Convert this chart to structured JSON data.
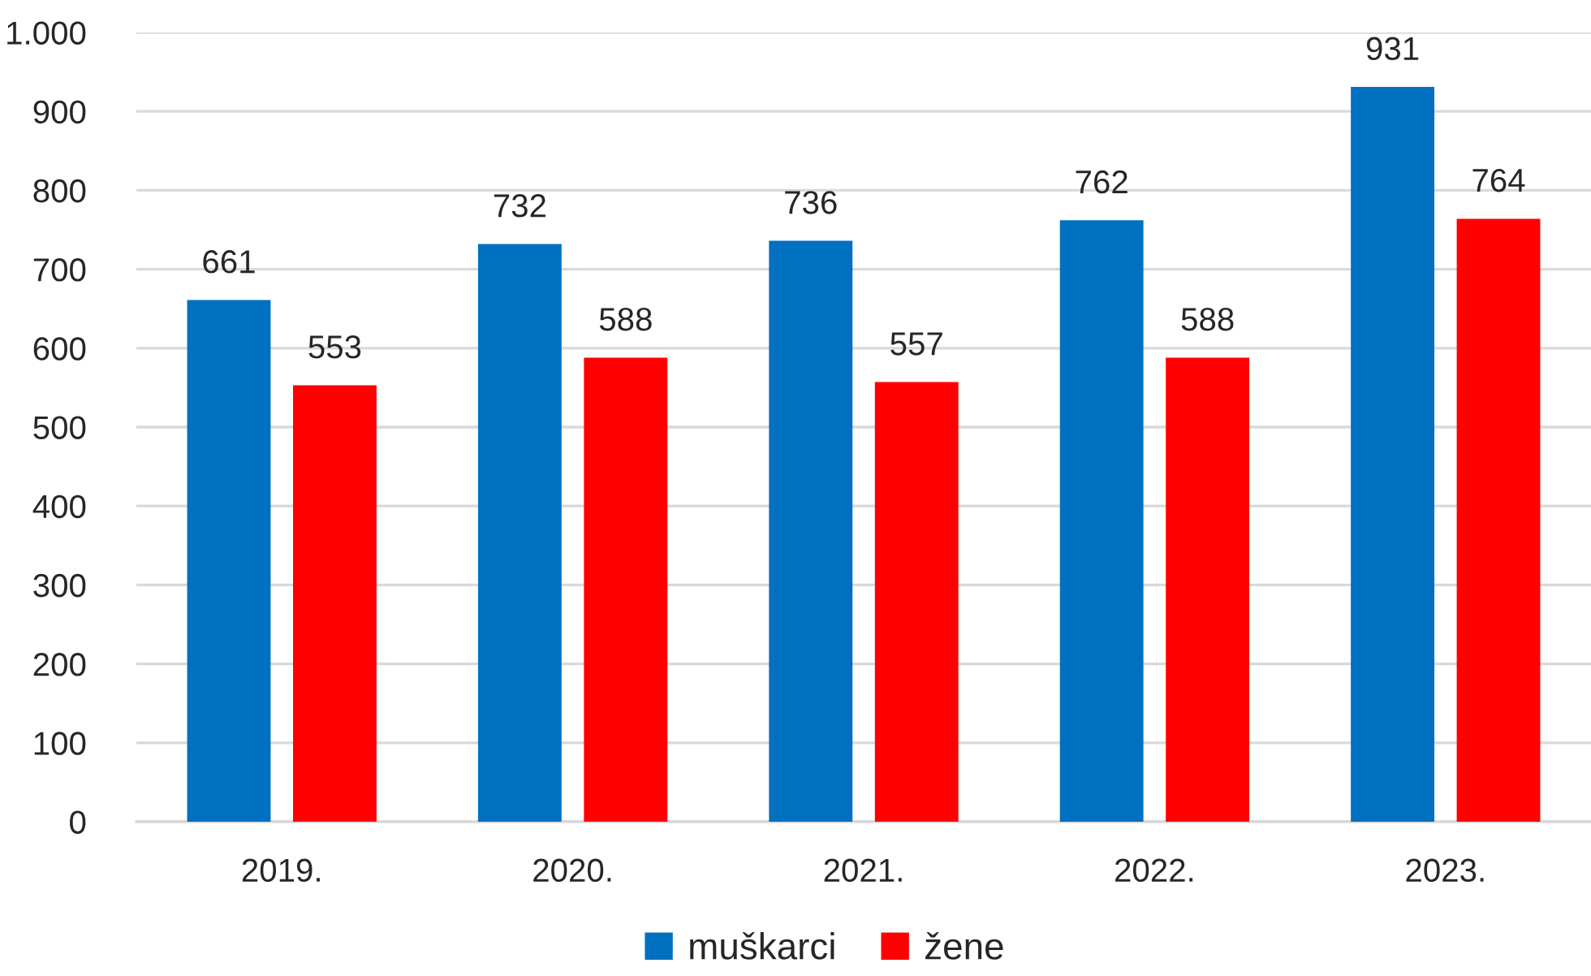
{
  "chart_data": {
    "type": "bar",
    "categories": [
      "2019.",
      "2020.",
      "2021.",
      "2022.",
      "2023."
    ],
    "series": [
      {
        "name": "muškarci",
        "color": "#0070c0",
        "values": [
          661,
          732,
          736,
          762,
          931
        ]
      },
      {
        "name": "žene",
        "color": "#ff0000",
        "values": [
          553,
          588,
          557,
          588,
          764
        ]
      }
    ],
    "ylim": [
      0,
      1000
    ],
    "yticks": [
      0,
      100,
      200,
      300,
      400,
      500,
      600,
      700,
      800,
      900,
      {
        "value": 1000,
        "label": "1.000"
      }
    ],
    "grid": "y",
    "legend": "bottom",
    "data_labels": true
  }
}
